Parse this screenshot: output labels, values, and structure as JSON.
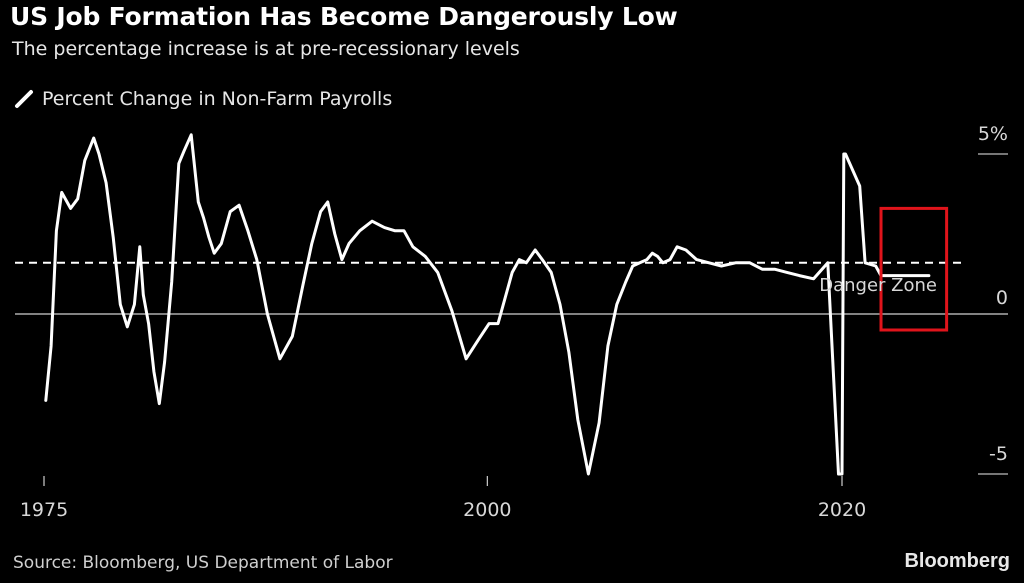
{
  "title": "US Job Formation Has Become Dangerously Low",
  "subtitle": "The percentage increase is at pre-recessionary levels",
  "source": "Source: Bloomberg, US Department of Labor",
  "brand": "Bloomberg",
  "colors": {
    "background": "#000000",
    "line": "#ffffff",
    "highlight_box": "#e0141b"
  },
  "legend": {
    "icon": "line-swatch-icon",
    "label": "Percent Change in Non-Farm Payrolls"
  },
  "chart_data": {
    "type": "line",
    "title": "US Job Formation Has Become Dangerously Low",
    "subtitle": "The percentage increase is at pre-recessionary levels",
    "xlabel": "",
    "ylabel": "",
    "xlim": [
      1975,
      2025
    ],
    "ylim": [
      -5.6,
      5.4
    ],
    "x_ticks": [
      1975,
      2000,
      2020
    ],
    "x_tick_labels": [
      "1975",
      "2000",
      "2020"
    ],
    "y_ticks": [
      5,
      0,
      -5
    ],
    "y_tick_labels": [
      "5%",
      "0",
      "-5"
    ],
    "grid": "horizontal at 5, 0, -5",
    "legend_position": "top-left",
    "reference_line": {
      "value": 1.6,
      "style": "dashed",
      "label": "Danger Zone"
    },
    "highlight_box": {
      "x_range": [
        2022.2,
        2025.9
      ],
      "y_range": [
        -0.5,
        3.3
      ]
    },
    "series": [
      {
        "name": "Percent Change in Non-Farm Payrolls",
        "x": [
          1975.1,
          1975.4,
          1975.7,
          1976.0,
          1976.5,
          1976.9,
          1977.3,
          1977.8,
          1978.1,
          1978.5,
          1978.9,
          1979.3,
          1979.7,
          1980.1,
          1980.4,
          1980.6,
          1980.9,
          1981.2,
          1981.5,
          1981.8,
          1982.2,
          1982.6,
          1982.9,
          1983.3,
          1983.7,
          1984.0,
          1984.3,
          1984.6,
          1985.0,
          1985.5,
          1986.0,
          1986.5,
          1987.0,
          1987.6,
          1988.3,
          1989.0,
          1989.6,
          1990.1,
          1990.6,
          1991.0,
          1991.4,
          1991.8,
          1992.2,
          1992.8,
          1993.5,
          1994.2,
          1994.8,
          1995.3,
          1995.8,
          1996.5,
          1997.2,
          1998.0,
          1998.8,
          1999.5,
          2000.1,
          2000.6,
          2001.0,
          2001.4,
          2001.8,
          2002.2,
          2002.7,
          2003.1,
          2003.6,
          2004.1,
          2004.6,
          2005.1,
          2005.7,
          2006.3,
          2006.8,
          2007.3,
          2007.8,
          2008.2,
          2008.6,
          2009.0,
          2009.3,
          2009.6,
          2009.9,
          2010.3,
          2010.7,
          2011.2,
          2011.8,
          2012.5,
          2013.2,
          2014.0,
          2014.8,
          2015.5,
          2016.2,
          2016.9,
          2017.6,
          2018.4,
          2019.2,
          2019.8,
          2020.0,
          2020.1,
          2020.2,
          2021.0,
          2021.2,
          2021.3,
          2021.9,
          2022.2,
          2022.6,
          2022.9,
          2023.3,
          2023.7,
          2024.1,
          2024.5,
          2024.9
        ],
        "values": [
          -2.7,
          -1.0,
          2.6,
          3.8,
          3.3,
          3.6,
          4.8,
          5.5,
          5.0,
          4.1,
          2.4,
          0.3,
          -0.4,
          0.3,
          2.1,
          0.6,
          -0.3,
          -1.8,
          -2.8,
          -1.5,
          1.0,
          4.7,
          5.1,
          5.6,
          3.5,
          3.0,
          2.4,
          1.9,
          2.2,
          3.2,
          3.4,
          2.6,
          1.7,
          0.0,
          -1.4,
          -0.7,
          0.9,
          2.2,
          3.2,
          3.5,
          2.5,
          1.7,
          2.2,
          2.6,
          2.9,
          2.7,
          2.6,
          2.6,
          2.1,
          1.8,
          1.3,
          0.1,
          -1.4,
          -0.8,
          -0.3,
          -0.3,
          0.5,
          1.3,
          1.7,
          1.6,
          2.0,
          1.7,
          1.3,
          0.3,
          -1.2,
          -3.3,
          -5.0,
          -3.4,
          -1.0,
          0.3,
          1.0,
          1.5,
          1.6,
          1.7,
          1.9,
          1.8,
          1.6,
          1.7,
          2.1,
          2.0,
          1.7,
          1.6,
          1.5,
          1.6,
          1.6,
          1.4,
          1.4,
          1.3,
          1.2,
          1.1,
          1.6,
          -5.0,
          -5.0,
          5.0,
          5.0,
          4.0,
          2.4,
          1.6,
          1.5,
          1.2,
          1.2,
          1.2,
          1.2,
          1.2,
          1.2,
          1.2,
          1.2
        ]
      }
    ]
  }
}
